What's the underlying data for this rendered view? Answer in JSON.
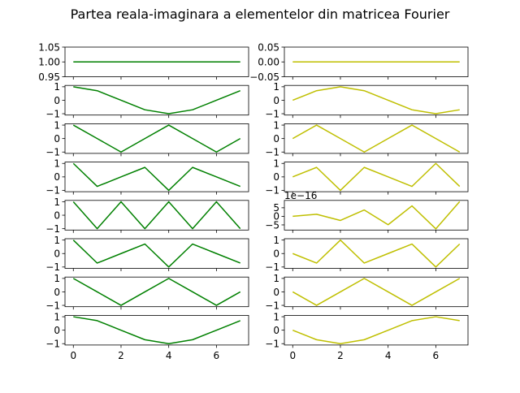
{
  "title": "Partea reala-imaginara a elementelor din matricea Fourier",
  "chart_data": {
    "type": "line",
    "title": "Partea reala-imaginara a elementelor din matricea Fourier",
    "layout": "8 rows x 2 columns",
    "colors": {
      "real": "#008000",
      "imag": "#bfbf00"
    },
    "x": [
      0,
      1,
      2,
      3,
      4,
      5,
      6,
      7
    ],
    "xticks": [
      "0",
      "2",
      "4",
      "6"
    ],
    "grid": false,
    "subplots": [
      {
        "row": 0,
        "col": 0,
        "part": "real",
        "values": [
          1,
          1,
          1,
          1,
          1,
          1,
          1,
          1
        ],
        "ylim": [
          0.95,
          1.05
        ],
        "yticks": [
          0.95,
          1.0,
          1.05
        ],
        "ytick_labels": [
          "0.95",
          "1.00",
          "1.05"
        ]
      },
      {
        "row": 0,
        "col": 1,
        "part": "imag",
        "values": [
          0,
          0,
          0,
          0,
          0,
          0,
          0,
          0
        ],
        "ylim": [
          -0.05,
          0.05
        ],
        "yticks": [
          -0.05,
          0.0,
          0.05
        ],
        "ytick_labels": [
          "−0.05",
          "0.00",
          "0.05"
        ]
      },
      {
        "row": 1,
        "col": 0,
        "part": "real",
        "values": [
          1,
          0.707,
          0,
          -0.707,
          -1,
          -0.707,
          0,
          0.707
        ],
        "ylim": [
          -1.1,
          1.1
        ],
        "yticks": [
          -1,
          0,
          1
        ],
        "ytick_labels": [
          "−1",
          "0",
          "1"
        ]
      },
      {
        "row": 1,
        "col": 1,
        "part": "imag",
        "values": [
          0,
          0.707,
          1,
          0.707,
          0,
          -0.707,
          -1,
          -0.707
        ],
        "ylim": [
          -1.1,
          1.1
        ],
        "yticks": [
          -1,
          0,
          1
        ],
        "ytick_labels": [
          "−1",
          "0",
          "1"
        ]
      },
      {
        "row": 2,
        "col": 0,
        "part": "real",
        "values": [
          1,
          0,
          -1,
          0,
          1,
          0,
          -1,
          0
        ],
        "ylim": [
          -1.1,
          1.1
        ],
        "yticks": [
          -1,
          0,
          1
        ],
        "ytick_labels": [
          "−1",
          "0",
          "1"
        ]
      },
      {
        "row": 2,
        "col": 1,
        "part": "imag",
        "values": [
          0,
          1,
          0,
          -1,
          0,
          1,
          0,
          -1
        ],
        "ylim": [
          -1.1,
          1.1
        ],
        "yticks": [
          -1,
          0,
          1
        ],
        "ytick_labels": [
          "−1",
          "0",
          "1"
        ]
      },
      {
        "row": 3,
        "col": 0,
        "part": "real",
        "values": [
          1,
          -0.707,
          0,
          0.707,
          -1,
          0.707,
          0,
          -0.707
        ],
        "ylim": [
          -1.1,
          1.1
        ],
        "yticks": [
          -1,
          0,
          1
        ],
        "ytick_labels": [
          "−1",
          "0",
          "1"
        ]
      },
      {
        "row": 3,
        "col": 1,
        "part": "imag",
        "values": [
          0,
          0.707,
          -1,
          0.707,
          0,
          -0.707,
          1,
          -0.707
        ],
        "ylim": [
          -1.1,
          1.1
        ],
        "yticks": [
          -1,
          0,
          1
        ],
        "ytick_labels": [
          "−1",
          "0",
          "1"
        ]
      },
      {
        "row": 4,
        "col": 0,
        "part": "real",
        "values": [
          1,
          -1,
          1,
          -1,
          1,
          -1,
          1,
          -1
        ],
        "ylim": [
          -1.1,
          1.1
        ],
        "yticks": [
          -1,
          0,
          1
        ],
        "ytick_labels": [
          "−1",
          "0",
          "1"
        ]
      },
      {
        "row": 4,
        "col": 1,
        "part": "imag",
        "values": [
          0,
          1.2,
          -2.4,
          3.7,
          -4.9,
          6.1,
          -7.3,
          8.6
        ],
        "ylim": [
          -8.0,
          9.3
        ],
        "yticks": [
          -5,
          0,
          5
        ],
        "ytick_labels": [
          "−5",
          "0",
          "5"
        ],
        "offset_text": "1e−16"
      },
      {
        "row": 5,
        "col": 0,
        "part": "real",
        "values": [
          1,
          -0.707,
          0,
          0.707,
          -1,
          0.707,
          0,
          -0.707
        ],
        "ylim": [
          -1.1,
          1.1
        ],
        "yticks": [
          -1,
          0,
          1
        ],
        "ytick_labels": [
          "−1",
          "0",
          "1"
        ]
      },
      {
        "row": 5,
        "col": 1,
        "part": "imag",
        "values": [
          0,
          -0.707,
          1,
          -0.707,
          0,
          0.707,
          -1,
          0.707
        ],
        "ylim": [
          -1.1,
          1.1
        ],
        "yticks": [
          -1,
          0,
          1
        ],
        "ytick_labels": [
          "−1",
          "0",
          "1"
        ]
      },
      {
        "row": 6,
        "col": 0,
        "part": "real",
        "values": [
          1,
          0,
          -1,
          0,
          1,
          0,
          -1,
          0
        ],
        "ylim": [
          -1.1,
          1.1
        ],
        "yticks": [
          -1,
          0,
          1
        ],
        "ytick_labels": [
          "−1",
          "0",
          "1"
        ]
      },
      {
        "row": 6,
        "col": 1,
        "part": "imag",
        "values": [
          0,
          -1,
          0,
          1,
          0,
          -1,
          0,
          1
        ],
        "ylim": [
          -1.1,
          1.1
        ],
        "yticks": [
          -1,
          0,
          1
        ],
        "ytick_labels": [
          "−1",
          "0",
          "1"
        ]
      },
      {
        "row": 7,
        "col": 0,
        "part": "real",
        "values": [
          1,
          0.707,
          0,
          -0.707,
          -1,
          -0.707,
          0,
          0.707
        ],
        "ylim": [
          -1.1,
          1.1
        ],
        "yticks": [
          -1,
          0,
          1
        ],
        "ytick_labels": [
          "−1",
          "0",
          "1"
        ]
      },
      {
        "row": 7,
        "col": 1,
        "part": "imag",
        "values": [
          0,
          -0.707,
          -1,
          -0.707,
          0,
          0.707,
          1,
          0.707
        ],
        "ylim": [
          -1.1,
          1.1
        ],
        "yticks": [
          -1,
          0,
          1
        ],
        "ytick_labels": [
          "−1",
          "0",
          "1"
        ]
      }
    ]
  }
}
